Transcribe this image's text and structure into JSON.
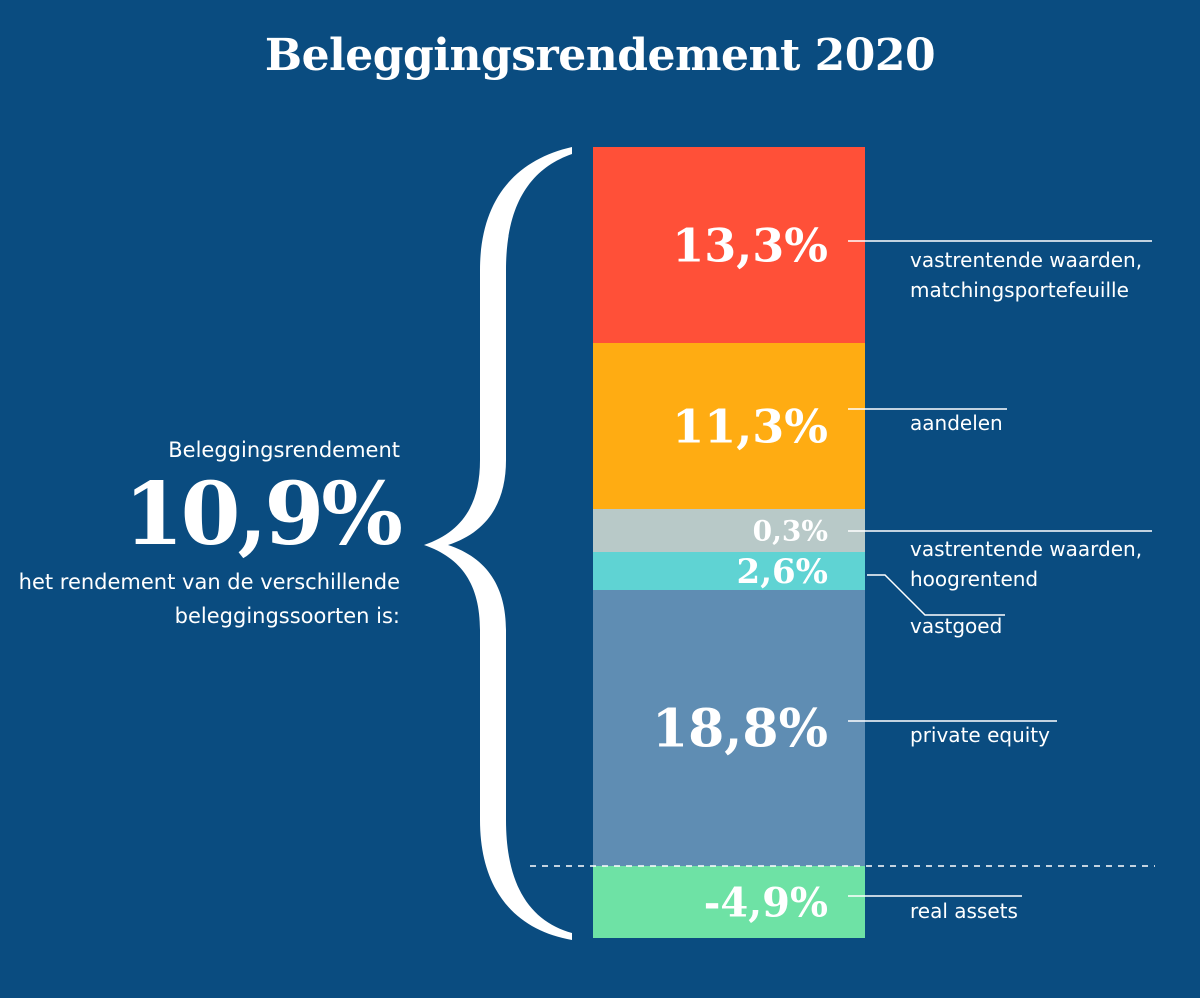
{
  "title": "Beleggingsrendement 2020",
  "summary": {
    "label": "Beleggingsrendement",
    "value": "10,9%",
    "description_line1": "het rendement van de verschillende",
    "description_line2": "beleggingssoorten is:"
  },
  "colors": {
    "background": "#0a4c80",
    "vastrentende_matching": "#ff5038",
    "aandelen": "#ffac12",
    "vastrentende_hoogrentend": "#b8c9c8",
    "vastgoed": "#5fd3d3",
    "private_equity": "#5f8db3",
    "real_assets": "#6ee2a5"
  },
  "chart_data": {
    "type": "bar",
    "title": "Beleggingsrendement 2020",
    "series": [
      {
        "name": "vastrentende waarden, matchingsportefeuille",
        "value": 13.3,
        "label": "13,3%",
        "label_lines": [
          "vastrentende waarden,",
          "matchingsportefeuille"
        ],
        "color": "#ff5038"
      },
      {
        "name": "aandelen",
        "value": 11.3,
        "label": "11,3%",
        "label_lines": [
          "aandelen"
        ],
        "color": "#ffac12"
      },
      {
        "name": "vastrentende waarden, hoogrentend",
        "value": 0.3,
        "label": "0,3%",
        "label_lines": [
          "vastrentende waarden,",
          "hoogrentend"
        ],
        "color": "#b8c9c8"
      },
      {
        "name": "vastgoed",
        "value": 2.6,
        "label": "2,6%",
        "label_lines": [
          "vastgoed"
        ],
        "color": "#5fd3d3"
      },
      {
        "name": "private equity",
        "value": 18.8,
        "label": "18,8%",
        "label_lines": [
          "private equity"
        ],
        "color": "#5f8db3"
      },
      {
        "name": "real assets",
        "value": -4.9,
        "label": "-4,9%",
        "label_lines": [
          "real assets"
        ],
        "color": "#6ee2a5"
      }
    ]
  }
}
